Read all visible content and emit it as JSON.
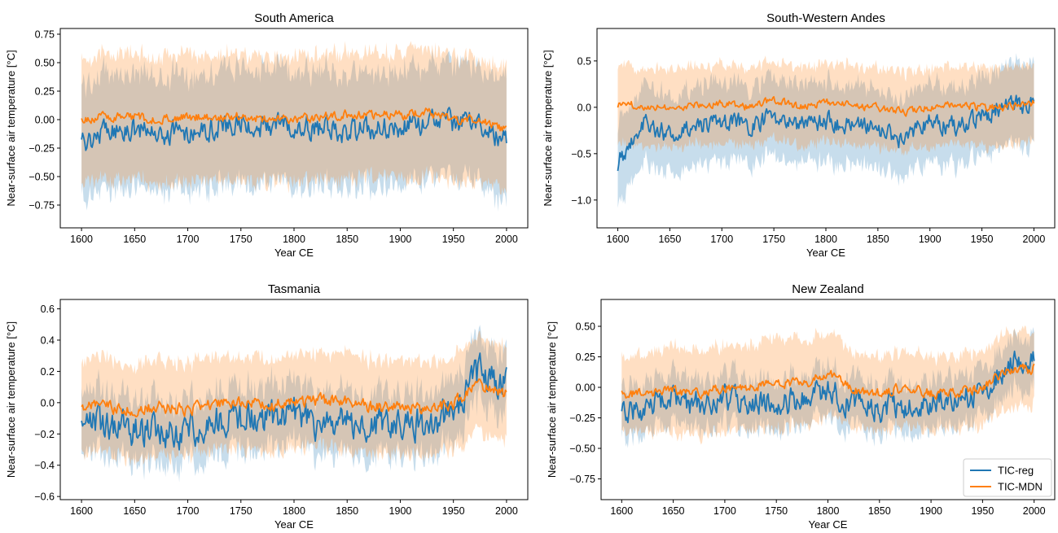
{
  "colors": {
    "reg": "#1f77b4",
    "mdn": "#ff7f0e"
  },
  "legend": {
    "placement": "lower-right",
    "entries": [
      "TIC-reg",
      "TIC-MDN"
    ]
  },
  "chart_data": [
    {
      "type": "line",
      "title": "South America",
      "xlabel": "Year CE",
      "ylabel": "Near-surface air temperature [°C]",
      "xlim": [
        1580,
        2020
      ],
      "ylim": [
        -0.95,
        0.8
      ],
      "xticks": [
        1600,
        1650,
        1700,
        1750,
        1800,
        1850,
        1900,
        1950,
        2000
      ],
      "yticks": [
        -0.75,
        -0.5,
        -0.25,
        0.0,
        0.25,
        0.5,
        0.75
      ],
      "ytick_labels": [
        "−0.75",
        "−0.50",
        "−0.25",
        "0.00",
        "0.25",
        "0.50",
        "0.75"
      ],
      "x": [
        1600,
        1625,
        1650,
        1675,
        1700,
        1725,
        1750,
        1775,
        1800,
        1825,
        1850,
        1875,
        1900,
        1925,
        1950,
        1975,
        2000
      ],
      "series": [
        {
          "name": "TIC-reg",
          "values": [
            -0.2,
            -0.08,
            -0.1,
            -0.12,
            -0.1,
            -0.06,
            -0.05,
            -0.06,
            -0.05,
            -0.08,
            -0.1,
            -0.1,
            -0.05,
            -0.02,
            -0.03,
            -0.02,
            -0.2
          ],
          "band": [
            0.5,
            0.5,
            0.5,
            0.5,
            0.5,
            0.5,
            0.5,
            0.5,
            0.5,
            0.5,
            0.5,
            0.5,
            0.5,
            0.5,
            0.5,
            0.5,
            0.55
          ]
        },
        {
          "name": "TIC-MDN",
          "values": [
            0.0,
            0.03,
            0.02,
            0.0,
            0.02,
            0.02,
            0.03,
            0.0,
            0.01,
            0.02,
            0.05,
            0.04,
            0.04,
            0.06,
            0.0,
            0.0,
            -0.1
          ],
          "band": [
            0.55,
            0.55,
            0.55,
            0.55,
            0.55,
            0.55,
            0.55,
            0.55,
            0.55,
            0.55,
            0.55,
            0.55,
            0.55,
            0.55,
            0.55,
            0.55,
            0.55
          ]
        }
      ]
    },
    {
      "type": "line",
      "title": "South-Western Andes",
      "xlabel": "Year CE",
      "ylabel": "Near-surface air temperature [°C]",
      "xlim": [
        1580,
        2020
      ],
      "ylim": [
        -1.3,
        0.85
      ],
      "xticks": [
        1600,
        1650,
        1700,
        1750,
        1800,
        1850,
        1900,
        1950,
        2000
      ],
      "yticks": [
        -1.0,
        -0.5,
        0.0,
        0.5
      ],
      "ytick_labels": [
        "−1.0",
        "−0.5",
        "0.0",
        "0.5"
      ],
      "x": [
        1600,
        1625,
        1650,
        1675,
        1700,
        1725,
        1750,
        1775,
        1800,
        1825,
        1850,
        1875,
        1900,
        1925,
        1950,
        1975,
        2000
      ],
      "series": [
        {
          "name": "TIC-reg",
          "values": [
            -0.6,
            -0.15,
            -0.3,
            -0.2,
            -0.15,
            -0.2,
            -0.1,
            -0.2,
            -0.15,
            -0.2,
            -0.25,
            -0.35,
            -0.15,
            -0.2,
            -0.1,
            0.05,
            0.0
          ],
          "band": [
            0.45,
            0.42,
            0.42,
            0.42,
            0.42,
            0.42,
            0.42,
            0.42,
            0.42,
            0.42,
            0.42,
            0.42,
            0.42,
            0.42,
            0.42,
            0.42,
            0.45
          ]
        },
        {
          "name": "TIC-MDN",
          "values": [
            0.03,
            0.02,
            0.0,
            0.02,
            0.05,
            0.0,
            0.08,
            0.0,
            0.05,
            0.02,
            0.0,
            -0.05,
            0.0,
            0.02,
            0.0,
            0.0,
            0.05
          ],
          "band": [
            0.42,
            0.42,
            0.42,
            0.42,
            0.42,
            0.42,
            0.42,
            0.42,
            0.42,
            0.42,
            0.42,
            0.42,
            0.42,
            0.42,
            0.42,
            0.42,
            0.42
          ]
        }
      ]
    },
    {
      "type": "line",
      "title": "Tasmania",
      "xlabel": "Year CE",
      "ylabel": "Near-surface air temperature [°C]",
      "xlim": [
        1580,
        2020
      ],
      "ylim": [
        -0.62,
        0.66
      ],
      "xticks": [
        1600,
        1650,
        1700,
        1750,
        1800,
        1850,
        1900,
        1950,
        2000
      ],
      "yticks": [
        -0.6,
        -0.4,
        -0.2,
        0.0,
        0.2,
        0.4,
        0.6
      ],
      "ytick_labels": [
        "−0.6",
        "−0.4",
        "−0.2",
        "0.0",
        "0.2",
        "0.4",
        "0.6"
      ],
      "x": [
        1600,
        1625,
        1650,
        1675,
        1700,
        1725,
        1750,
        1775,
        1800,
        1825,
        1850,
        1875,
        1900,
        1925,
        1950,
        1975,
        2000
      ],
      "series": [
        {
          "name": "TIC-reg",
          "values": [
            -0.1,
            -0.15,
            -0.18,
            -0.2,
            -0.18,
            -0.12,
            -0.1,
            -0.1,
            -0.05,
            -0.15,
            -0.12,
            -0.15,
            -0.1,
            -0.15,
            -0.05,
            0.2,
            0.1
          ],
          "band": [
            0.2,
            0.2,
            0.2,
            0.2,
            0.2,
            0.2,
            0.2,
            0.2,
            0.2,
            0.2,
            0.2,
            0.2,
            0.2,
            0.2,
            0.2,
            0.2,
            0.2
          ]
        },
        {
          "name": "TIC-MDN",
          "values": [
            -0.02,
            -0.03,
            -0.05,
            -0.03,
            -0.05,
            -0.02,
            0.0,
            -0.02,
            0.0,
            0.02,
            0.0,
            -0.03,
            -0.02,
            -0.05,
            0.0,
            0.12,
            0.05
          ],
          "band": [
            0.3,
            0.3,
            0.3,
            0.3,
            0.3,
            0.3,
            0.3,
            0.3,
            0.3,
            0.3,
            0.3,
            0.3,
            0.3,
            0.3,
            0.3,
            0.3,
            0.3
          ]
        }
      ]
    },
    {
      "type": "line",
      "title": "New Zealand",
      "xlabel": "Year CE",
      "ylabel": "Near-surface air temperature [°C]",
      "xlim": [
        1580,
        2020
      ],
      "ylim": [
        -0.92,
        0.72
      ],
      "xticks": [
        1600,
        1650,
        1700,
        1750,
        1800,
        1850,
        1900,
        1950,
        2000
      ],
      "yticks": [
        -0.75,
        -0.5,
        -0.25,
        0.0,
        0.25,
        0.5
      ],
      "ytick_labels": [
        "−0.75",
        "−0.50",
        "−0.25",
        "0.00",
        "0.25",
        "0.50"
      ],
      "x": [
        1600,
        1625,
        1650,
        1675,
        1700,
        1725,
        1750,
        1775,
        1800,
        1825,
        1850,
        1875,
        1900,
        1925,
        1950,
        1975,
        2000
      ],
      "series": [
        {
          "name": "TIC-reg",
          "values": [
            -0.25,
            -0.15,
            -0.12,
            -0.15,
            -0.1,
            -0.12,
            -0.12,
            -0.1,
            -0.02,
            -0.15,
            -0.18,
            -0.15,
            -0.12,
            -0.12,
            -0.05,
            0.2,
            0.2
          ],
          "band": [
            0.22,
            0.2,
            0.2,
            0.2,
            0.2,
            0.2,
            0.2,
            0.2,
            0.2,
            0.2,
            0.2,
            0.2,
            0.2,
            0.2,
            0.2,
            0.2,
            0.22
          ]
        },
        {
          "name": "TIC-MDN",
          "values": [
            -0.05,
            -0.05,
            -0.03,
            -0.05,
            0.0,
            0.0,
            0.05,
            0.02,
            0.12,
            -0.02,
            -0.05,
            0.0,
            -0.05,
            -0.05,
            0.0,
            0.15,
            0.15
          ],
          "band": [
            0.3,
            0.32,
            0.35,
            0.35,
            0.35,
            0.35,
            0.38,
            0.35,
            0.35,
            0.3,
            0.3,
            0.3,
            0.3,
            0.3,
            0.3,
            0.32,
            0.3
          ]
        }
      ]
    }
  ]
}
